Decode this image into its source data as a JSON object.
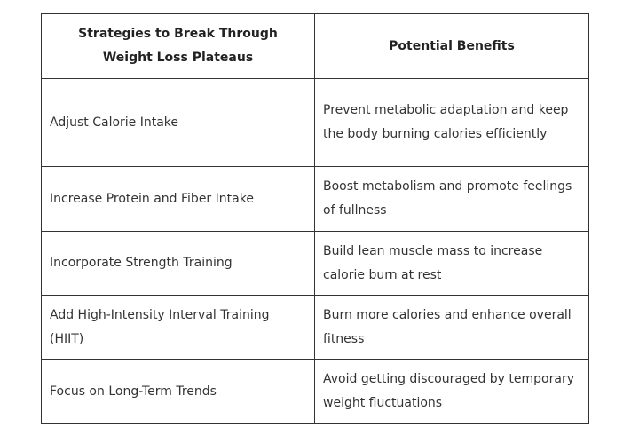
{
  "table": {
    "headers": [
      "Strategies to Break Through Weight Loss Plateaus",
      "Potential Benefits"
    ],
    "rows": [
      {
        "strategy": "Adjust Calorie Intake",
        "benefit": "Prevent metabolic adaptation and keep the body burning calories efficiently"
      },
      {
        "strategy": "Increase Protein and Fiber Intake",
        "benefit": "Boost metabolism and promote feelings of fullness"
      },
      {
        "strategy": "Incorporate Strength Training",
        "benefit": "Build lean muscle mass to increase calorie burn at rest"
      },
      {
        "strategy": "Add High-Intensity Interval Training (HIIT)",
        "benefit": "Burn more calories and enhance overall fitness"
      },
      {
        "strategy": "Focus on Long-Term Trends",
        "benefit": "Avoid getting discouraged by temporary weight fluctuations"
      }
    ]
  }
}
